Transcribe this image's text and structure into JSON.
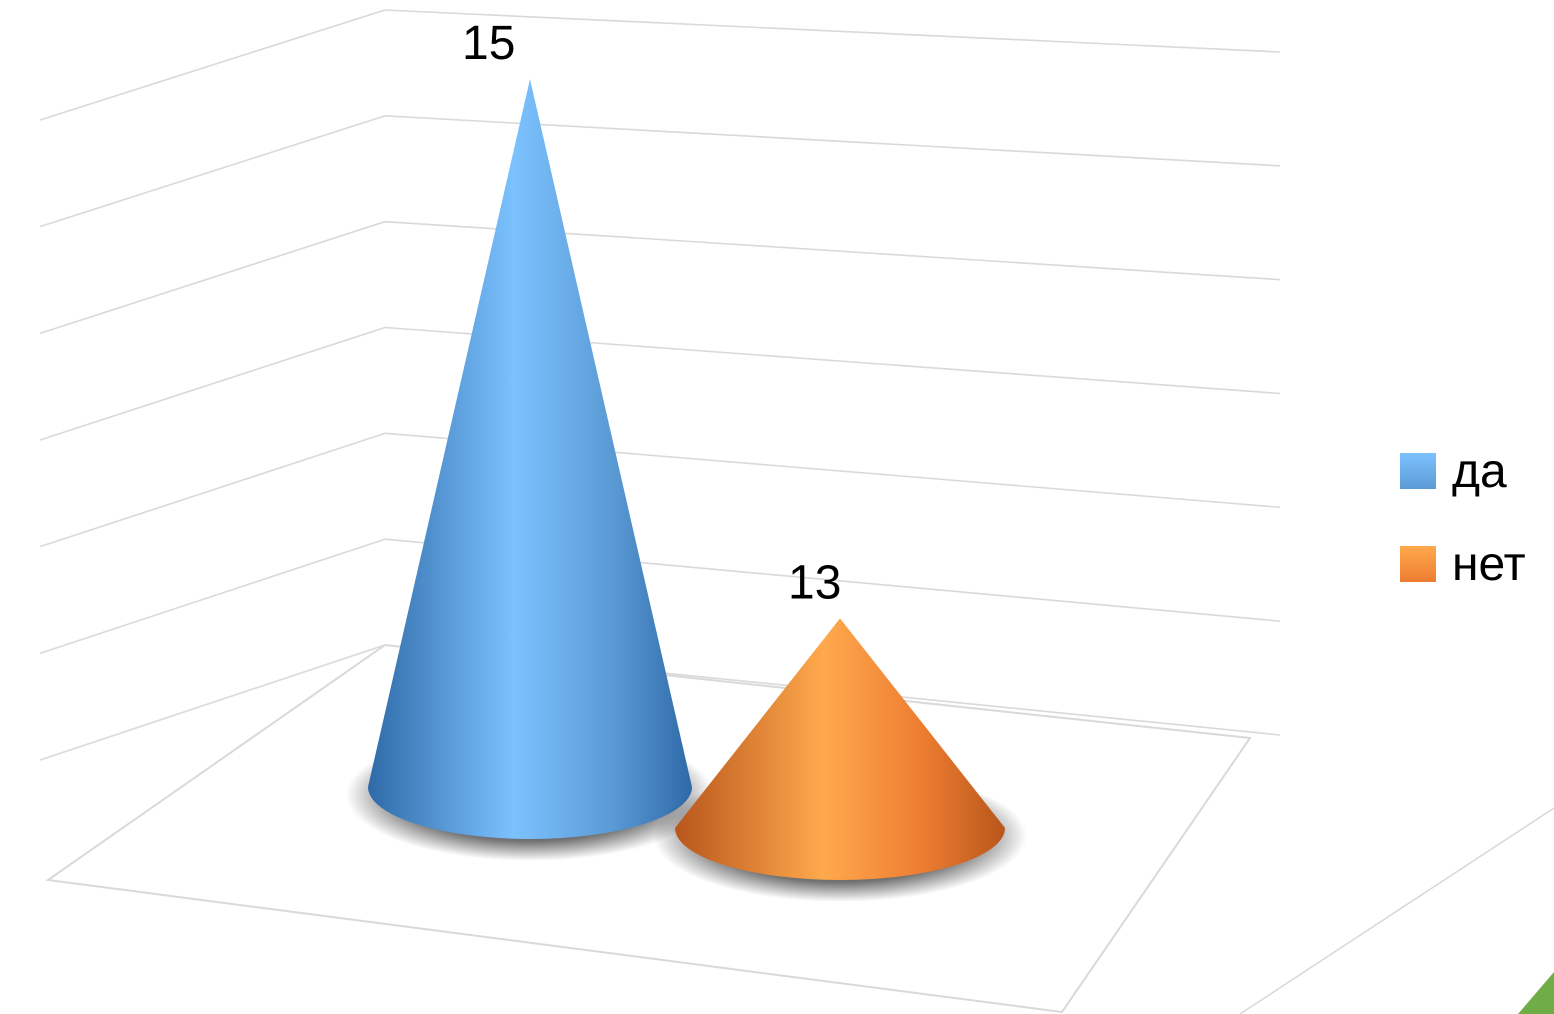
{
  "chart_data": {
    "type": "bar",
    "shape": "cone-3d",
    "categories": [
      ""
    ],
    "series": [
      {
        "name": "да",
        "values": [
          15
        ],
        "color": "#5B9BD5"
      },
      {
        "name": "нет",
        "values": [
          13
        ],
        "color": "#ED7D31"
      }
    ],
    "data_labels": [
      "15",
      "13"
    ],
    "ylim": [
      0,
      16
    ],
    "grid": true,
    "legend": {
      "placement": "right",
      "items": [
        "да",
        "нет"
      ]
    },
    "title": "",
    "xlabel": "",
    "ylabel": ""
  },
  "colors": {
    "series_1": "#5B9BD5",
    "series_1_highlight": "#7CC2FF",
    "series_1_shadow": "#2F6AA8",
    "series_2": "#ED7D31",
    "series_2_highlight": "#FFA94D",
    "series_2_shadow": "#B8561B",
    "gridline": "#D9D9D9",
    "decoration_green": "#70AD47"
  }
}
